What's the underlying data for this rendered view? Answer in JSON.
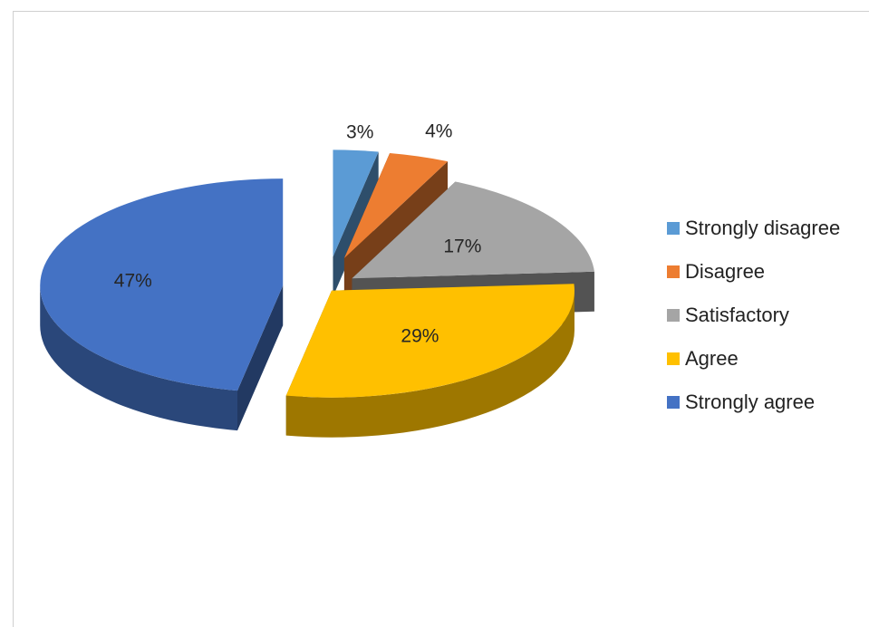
{
  "chart_data": {
    "type": "pie",
    "title": "",
    "categories": [
      "Strongly disagree",
      "Disagree",
      "Satisfactory",
      "Agree",
      "Strongly agree"
    ],
    "values": [
      3,
      4,
      17,
      29,
      47
    ],
    "data_labels": [
      "3%",
      "4%",
      "17%",
      "29%",
      "47%"
    ],
    "colors": [
      "#5B9BD5",
      "#ED7D31",
      "#A5A5A5",
      "#FFC000",
      "#4472C4"
    ],
    "legend": "right",
    "style": "3d-exploded"
  }
}
